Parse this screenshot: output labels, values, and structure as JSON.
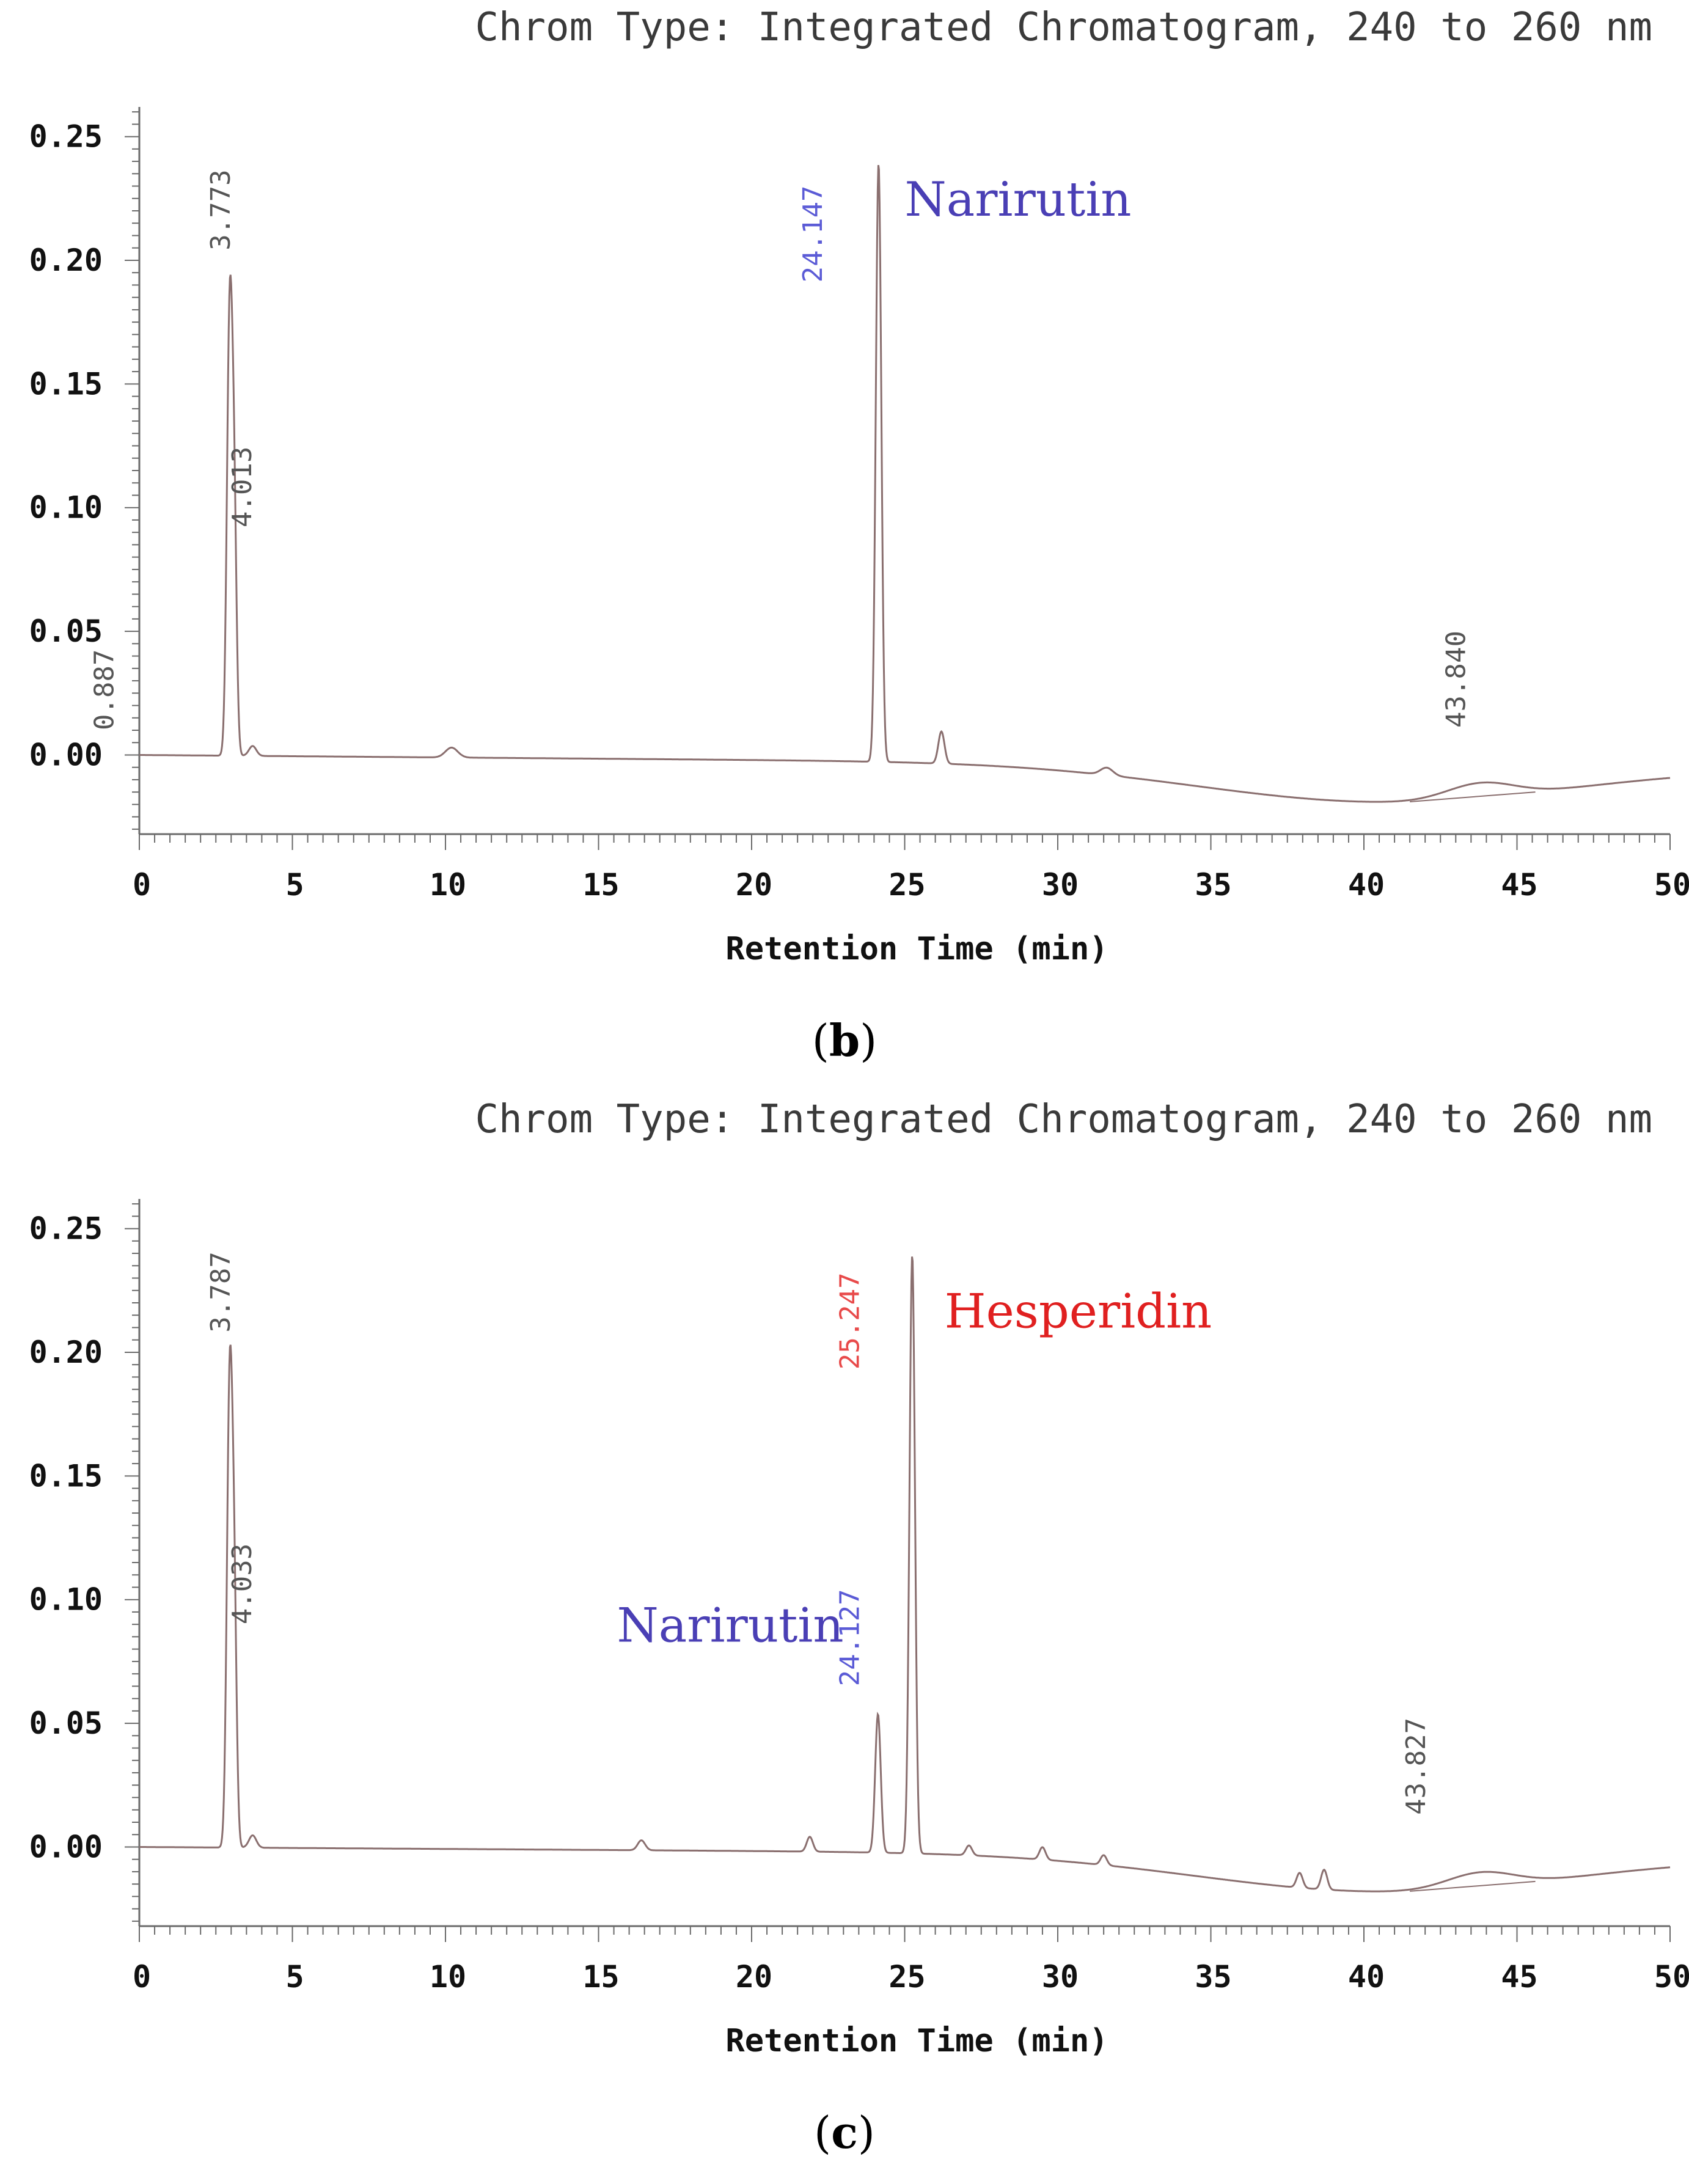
{
  "chart_data": [
    {
      "type": "line",
      "panel_label": "b",
      "title": "Chrom Type: Integrated Chromatogram, 240 to 260 nm",
      "xlabel": "Retention Time (min)",
      "ylabel": "",
      "xlim": [
        0,
        50
      ],
      "ylim": [
        -0.032,
        0.262
      ],
      "x_ticks": [
        0,
        5,
        10,
        15,
        20,
        25,
        30,
        35,
        40,
        45,
        50
      ],
      "y_ticks": [
        0.0,
        0.05,
        0.1,
        0.15,
        0.2,
        0.25
      ],
      "x_tick_labels": [
        "0",
        "5",
        "10",
        "15",
        "20",
        "25",
        "30",
        "35",
        "40",
        "45",
        "50"
      ],
      "y_tick_labels": [
        "0.00",
        "0.05",
        "0.10",
        "0.15",
        "0.20",
        "0.25"
      ],
      "line_color": "#8a6f6f",
      "baseline": {
        "start": 0.0,
        "end": -0.005,
        "dip_x": 40.5,
        "dip_y": -0.019
      },
      "peaks": [
        {
          "rt": 2.95,
          "height": 0.175,
          "width": 0.09
        },
        {
          "rt": 3.1,
          "height": 0.089,
          "width": 0.08
        },
        {
          "rt": 3.7,
          "height": 0.004,
          "width": 0.12
        },
        {
          "rt": 10.2,
          "height": 0.004,
          "width": 0.2
        },
        {
          "rt": 24.147,
          "height": 0.242,
          "width": 0.09
        },
        {
          "rt": 26.2,
          "height": 0.013,
          "width": 0.1
        },
        {
          "rt": 31.6,
          "height": 0.003,
          "width": 0.2
        },
        {
          "rt": 43.8,
          "height": 0.006,
          "width": 1.1
        }
      ],
      "annotations": [
        {
          "text": "3.773",
          "x": 2.95,
          "y": 0.204,
          "color": "#555555"
        },
        {
          "text": "4.013",
          "x": 3.65,
          "y": 0.092,
          "color": "#555555"
        },
        {
          "text": "0.887",
          "x": -0.85,
          "y": 0.01,
          "color": "#555555"
        },
        {
          "text": "24.147",
          "x": 22.3,
          "y": 0.191,
          "color": "#5b5bd6"
        },
        {
          "text": "43.840",
          "x": 43.3,
          "y": 0.011,
          "color": "#555555"
        }
      ],
      "compound_labels": [
        {
          "text": "Narirutin",
          "x": 25.0,
          "y": 0.218,
          "color": "#4a3fb5"
        }
      ]
    },
    {
      "type": "line",
      "panel_label": "c",
      "title": "Chrom Type: Integrated Chromatogram, 240 to 260 nm",
      "xlabel": "Retention Time (min)",
      "ylabel": "",
      "xlim": [
        0,
        50
      ],
      "ylim": [
        -0.032,
        0.262
      ],
      "x_ticks": [
        0,
        5,
        10,
        15,
        20,
        25,
        30,
        35,
        40,
        45,
        50
      ],
      "y_ticks": [
        0.0,
        0.05,
        0.1,
        0.15,
        0.2,
        0.25
      ],
      "x_tick_labels": [
        "0",
        "5",
        "10",
        "15",
        "20",
        "25",
        "30",
        "35",
        "40",
        "45",
        "50"
      ],
      "y_tick_labels": [
        "0.00",
        "0.05",
        "0.10",
        "0.15",
        "0.20",
        "0.25"
      ],
      "line_color": "#8a6f6f",
      "baseline": {
        "start": 0.0,
        "end": -0.004,
        "dip_x": 40.5,
        "dip_y": -0.018
      },
      "peaks": [
        {
          "rt": 2.95,
          "height": 0.184,
          "width": 0.09
        },
        {
          "rt": 3.1,
          "height": 0.09,
          "width": 0.08
        },
        {
          "rt": 3.7,
          "height": 0.005,
          "width": 0.12
        },
        {
          "rt": 16.4,
          "height": 0.004,
          "width": 0.12
        },
        {
          "rt": 21.9,
          "height": 0.006,
          "width": 0.1
        },
        {
          "rt": 24.127,
          "height": 0.056,
          "width": 0.09
        },
        {
          "rt": 25.247,
          "height": 0.242,
          "width": 0.09
        },
        {
          "rt": 27.1,
          "height": 0.004,
          "width": 0.1
        },
        {
          "rt": 29.5,
          "height": 0.005,
          "width": 0.1
        },
        {
          "rt": 31.5,
          "height": 0.004,
          "width": 0.1
        },
        {
          "rt": 37.9,
          "height": 0.006,
          "width": 0.1
        },
        {
          "rt": 38.7,
          "height": 0.008,
          "width": 0.1
        },
        {
          "rt": 43.8,
          "height": 0.006,
          "width": 1.1
        }
      ],
      "annotations": [
        {
          "text": "3.787",
          "x": 2.95,
          "y": 0.208,
          "color": "#555555"
        },
        {
          "text": "4.033",
          "x": 3.65,
          "y": 0.09,
          "color": "#555555"
        },
        {
          "text": "25.247",
          "x": 23.5,
          "y": 0.193,
          "color": "#e84a4a"
        },
        {
          "text": "24.127",
          "x": 23.5,
          "y": 0.065,
          "color": "#5b5bd6"
        },
        {
          "text": "43.827",
          "x": 42.0,
          "y": 0.013,
          "color": "#555555"
        }
      ],
      "compound_labels": [
        {
          "text": "Hesperidin",
          "x": 26.3,
          "y": 0.21,
          "color": "#e02020"
        },
        {
          "text": "Narirutin",
          "x": 15.6,
          "y": 0.083,
          "color": "#4a3fb5"
        }
      ]
    }
  ]
}
